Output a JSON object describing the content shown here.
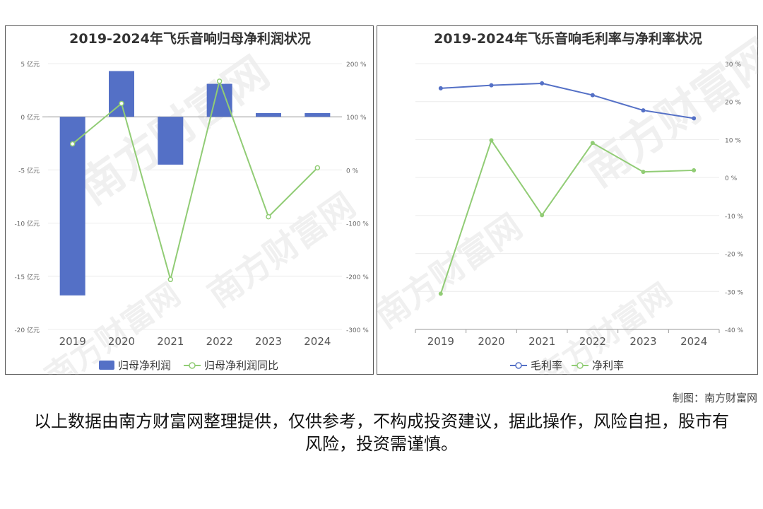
{
  "credit": "制图：南方财富网",
  "disclaimer": "以上数据由南方财富网整理提供，仅供参考，不构成投资建议，据此操作，风险自担，股市有风险，投资需谨慎。",
  "watermark": "南方财富网",
  "chart_data": [
    {
      "type": "bar",
      "title": "2019-2024年飞乐音响归母净利润状况",
      "categories": [
        "2019",
        "2020",
        "2021",
        "2022",
        "2023",
        "2024"
      ],
      "left_axis": {
        "min": -20,
        "max": 5,
        "step": 5,
        "unit": "亿元",
        "ticks": [
          "5 亿元",
          "0 亿元",
          "-5 亿元",
          "-10 亿元",
          "-15 亿元",
          "-20 亿元"
        ]
      },
      "right_axis": {
        "min": -300,
        "max": 200,
        "step": 100,
        "unit": "%",
        "ticks": [
          "200 %",
          "100 %",
          "0 %",
          "-100 %",
          "-200 %",
          "-300 %"
        ]
      },
      "series": [
        {
          "name": "归母净利润",
          "kind": "bar",
          "axis": "left",
          "color": "#5470c6",
          "values": [
            -16.8,
            4.3,
            -4.5,
            3.1,
            0.35,
            0.35
          ]
        },
        {
          "name": "归母净利润同比",
          "kind": "line",
          "axis": "right",
          "color": "#91cc75",
          "values": [
            49,
            125,
            -206,
            167,
            -88,
            4
          ]
        }
      ],
      "legend_position": "bottom"
    },
    {
      "type": "line",
      "title": "2019-2024年飞乐音响毛利率与净利率状况",
      "categories": [
        "2019",
        "2020",
        "2021",
        "2022",
        "2023",
        "2024"
      ],
      "right_axis": {
        "min": -40,
        "max": 30,
        "step": 10,
        "unit": "%",
        "ticks": [
          "30 %",
          "20 %",
          "10 %",
          "0 %",
          "-10 %",
          "-20 %",
          "-30 %",
          "-40 %"
        ]
      },
      "series": [
        {
          "name": "毛利率",
          "kind": "line",
          "color": "#5470c6",
          "values": [
            23.5,
            24.3,
            24.8,
            21.7,
            17.7,
            15.6
          ]
        },
        {
          "name": "净利率",
          "kind": "line",
          "color": "#91cc75",
          "values": [
            -30.6,
            9.8,
            -9.9,
            9.1,
            1.5,
            1.9
          ]
        }
      ],
      "legend_position": "bottom"
    }
  ]
}
